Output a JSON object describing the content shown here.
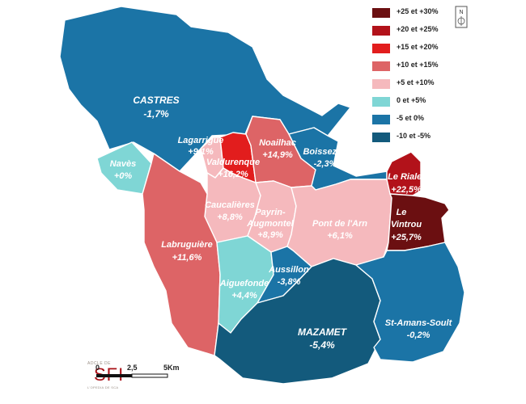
{
  "legend": {
    "items": [
      {
        "label": "+25 et +30%",
        "color": "#6b0f11"
      },
      {
        "label": "+20 et +25%",
        "color": "#b2121a"
      },
      {
        "label": "+15 et +20%",
        "color": "#e21d1d"
      },
      {
        "label": "+10 et +15%",
        "color": "#dd6466"
      },
      {
        "label": "+5 et +10%",
        "color": "#f5b9bd"
      },
      {
        "label": "0 et +5%",
        "color": "#7fd6d5"
      },
      {
        "label": "-5 et 0%",
        "color": "#1b74a6"
      },
      {
        "label": "-10 et -5%",
        "color": "#135a7c"
      }
    ]
  },
  "north": {
    "label": "N"
  },
  "communes": [
    {
      "name": "CASTRES",
      "value": "-1,7%",
      "class": "-5 et 0%"
    },
    {
      "name": "Navès",
      "value": "+0%",
      "class": "0 et +5%"
    },
    {
      "name": "Lagarrigue",
      "value": "+9,1%",
      "class": "+5 et +10%"
    },
    {
      "name": "Valdurenque",
      "value": "+16,2%",
      "class": "+15 et +20%"
    },
    {
      "name": "Noailhac",
      "value": "+14,9%",
      "class": "+10 et +15%"
    },
    {
      "name": "Boissezon",
      "value": "-2,3%",
      "class": "-5 et 0%"
    },
    {
      "name": "Le Rialet",
      "value": "+22,5%",
      "class": "+20 et +25%"
    },
    {
      "name": "Le Vintrou",
      "value": "+25,7%",
      "class": "+25 et +30%"
    },
    {
      "name": "Caucalières",
      "value": "+8,8%",
      "class": "+5 et +10%"
    },
    {
      "name": "Payrin-Augmontel",
      "value": "+8,9%",
      "class": "+5 et +10%"
    },
    {
      "name": "Pont de l'Arn",
      "value": "+6,1%",
      "class": "+5 et +10%"
    },
    {
      "name": "Labruguière",
      "value": "+11,6%",
      "class": "+10 et +15%"
    },
    {
      "name": "Aiguefonde",
      "value": "+4,4%",
      "class": "0 et +5%"
    },
    {
      "name": "Aussillon",
      "value": "-3,8%",
      "class": "-5 et 0%"
    },
    {
      "name": "MAZAMET",
      "value": "-5,4%",
      "class": "-10 et -5%"
    },
    {
      "name": "St-Amans-Soult",
      "value": "-0,2%",
      "class": "-5 et 0%"
    }
  ],
  "scale": {
    "ticks": [
      "0",
      "2,5",
      "5Km"
    ]
  },
  "logo": {
    "top_text": "ADCLE DE",
    "main_text": "SFI",
    "bottom_text": "L'OPEDIA DE SCA"
  }
}
